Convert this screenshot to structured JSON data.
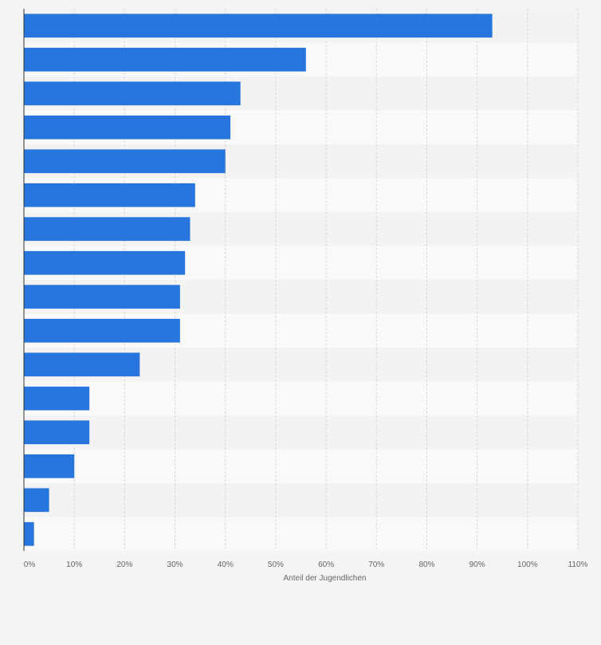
{
  "chart_data": {
    "type": "bar",
    "orientation": "horizontal",
    "categories": [
      "",
      "",
      "",
      "",
      "",
      "",
      "",
      "",
      "",
      "",
      "",
      "",
      "",
      "",
      "",
      ""
    ],
    "values": [
      93,
      56,
      43,
      41,
      40,
      34,
      33,
      32,
      31,
      31,
      23,
      13,
      13,
      10,
      5,
      2
    ],
    "xlim": [
      0,
      110
    ],
    "xticks": [
      "0%",
      "10%",
      "20%",
      "30%",
      "40%",
      "50%",
      "60%",
      "70%",
      "80%",
      "90%",
      "100%",
      "110%"
    ],
    "xlabel": "Anteil der Jugendlichen",
    "ylabel": "",
    "title": "",
    "grid": true,
    "legend": "none",
    "colors": {
      "bar": "#2876dd",
      "band_light": "#f9f9f9",
      "band_dark": "#f3f3f3",
      "gridline": "#d8d8d8",
      "axis": "#333333",
      "text": "#666666"
    }
  }
}
